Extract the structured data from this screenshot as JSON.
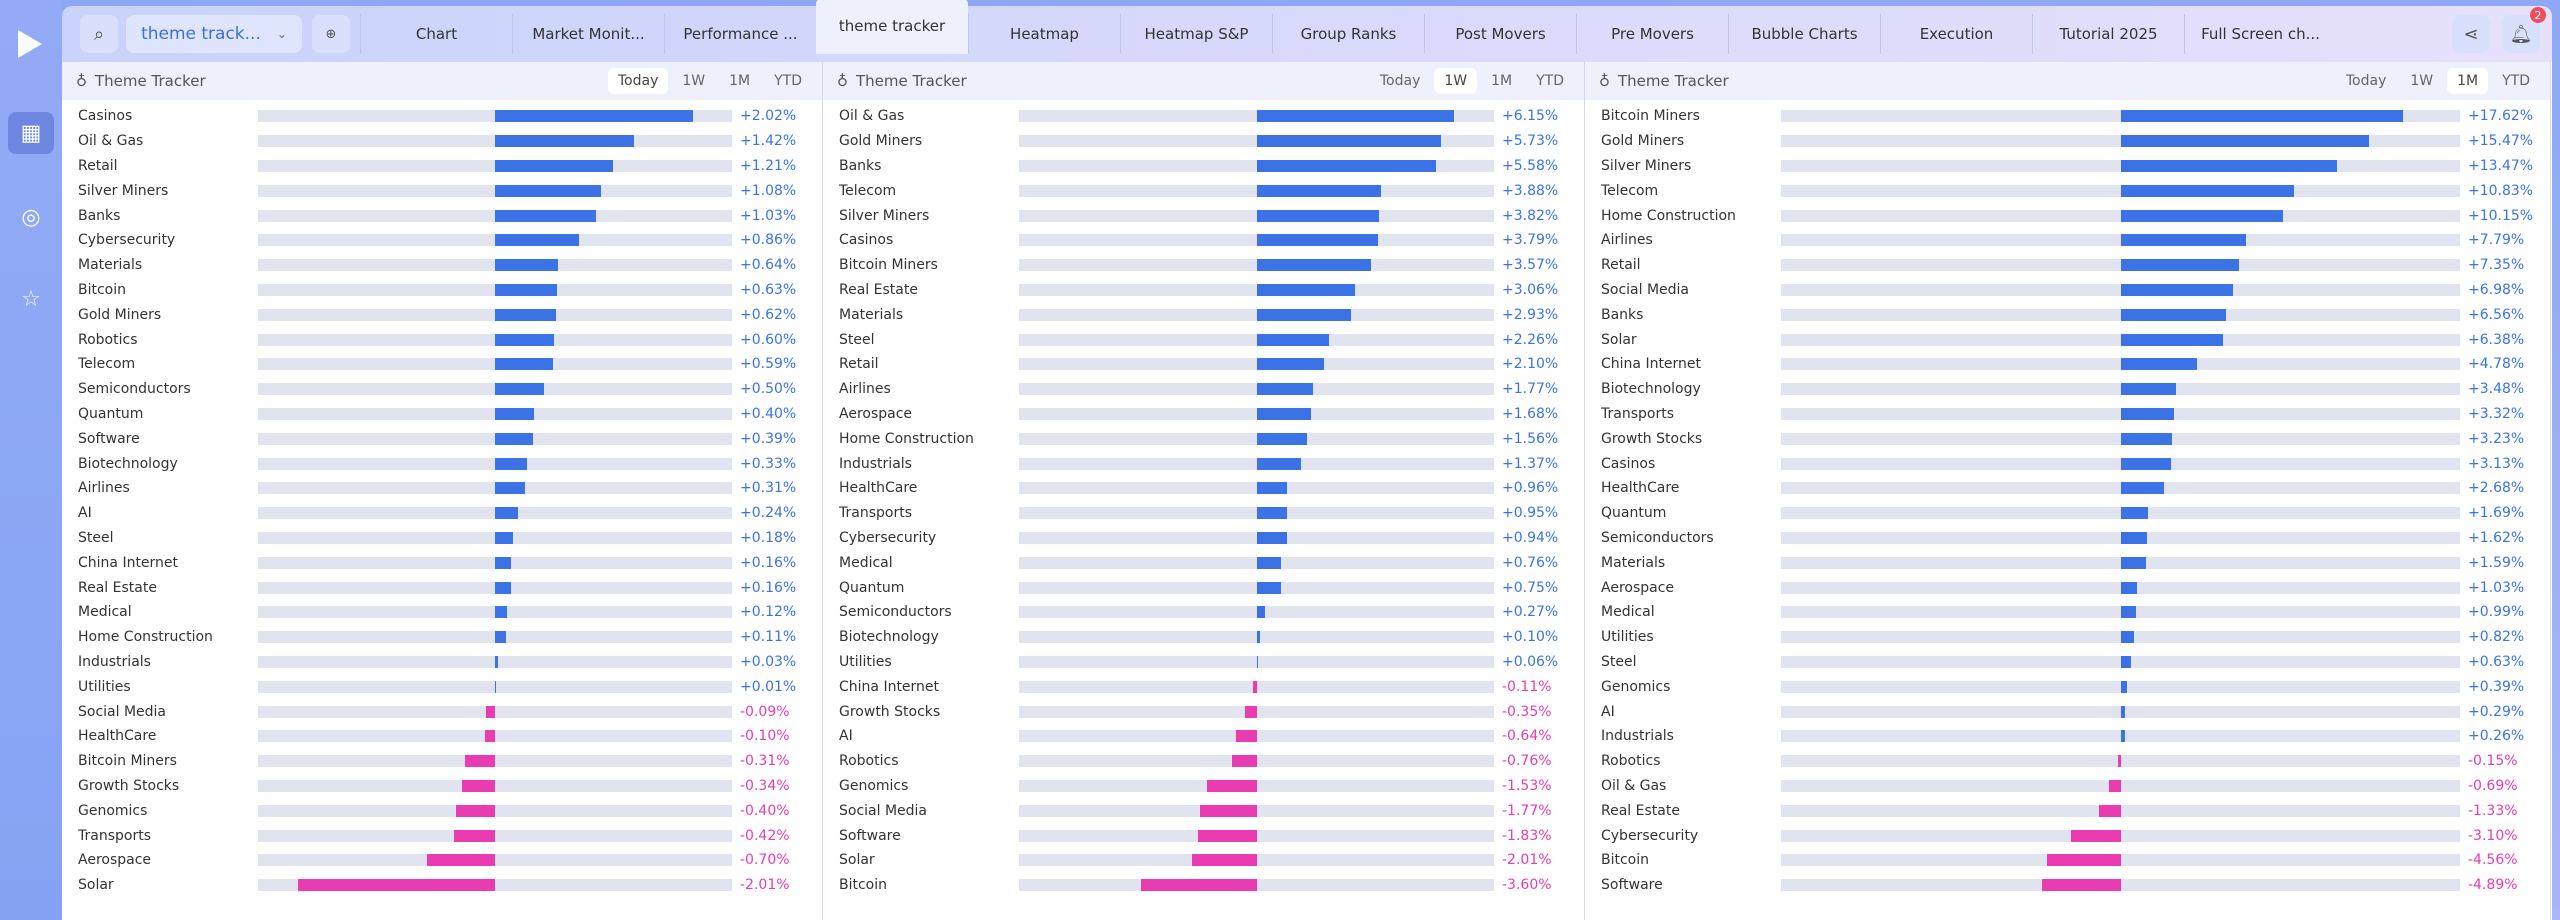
{
  "topbar": {
    "layout_name": "theme track...",
    "tabs": [
      "Chart",
      "Market Monit...",
      "Performance ...",
      "theme tracker",
      "Heatmap",
      "Heatmap S&P",
      "Group Ranks",
      "Post Movers",
      "Pre Movers",
      "Bubble Charts",
      "Execution",
      "Tutorial 2025",
      "Full Screen ch..."
    ],
    "active_tab": 3,
    "notification_count": "2"
  },
  "colors": {
    "positive": "#3b73e6",
    "negative": "#e83cb0"
  },
  "periods": [
    "Today",
    "1W",
    "1M",
    "YTD"
  ],
  "panels": [
    {
      "title": "Theme Tracker",
      "active_period": "Today",
      "rows": [
        [
          "Casinos",
          2.02
        ],
        [
          "Oil & Gas",
          1.42
        ],
        [
          "Retail",
          1.21
        ],
        [
          "Silver Miners",
          1.08
        ],
        [
          "Banks",
          1.03
        ],
        [
          "Cybersecurity",
          0.86
        ],
        [
          "Materials",
          0.64
        ],
        [
          "Bitcoin",
          0.63
        ],
        [
          "Gold Miners",
          0.62
        ],
        [
          "Robotics",
          0.6
        ],
        [
          "Telecom",
          0.59
        ],
        [
          "Semiconductors",
          0.5
        ],
        [
          "Quantum",
          0.4
        ],
        [
          "Software",
          0.39
        ],
        [
          "Biotechnology",
          0.33
        ],
        [
          "Airlines",
          0.31
        ],
        [
          "AI",
          0.24
        ],
        [
          "Steel",
          0.18
        ],
        [
          "China Internet",
          0.16
        ],
        [
          "Real Estate",
          0.16
        ],
        [
          "Medical",
          0.12
        ],
        [
          "Home Construction",
          0.11
        ],
        [
          "Industrials",
          0.03
        ],
        [
          "Utilities",
          0.01
        ],
        [
          "Social Media",
          -0.09
        ],
        [
          "HealthCare",
          -0.1
        ],
        [
          "Bitcoin Miners",
          -0.31
        ],
        [
          "Growth Stocks",
          -0.34
        ],
        [
          "Genomics",
          -0.4
        ],
        [
          "Transports",
          -0.42
        ],
        [
          "Aerospace",
          -0.7
        ],
        [
          "Solar",
          -2.01
        ]
      ]
    },
    {
      "title": "Theme Tracker",
      "active_period": "1W",
      "rows": [
        [
          "Oil & Gas",
          6.15
        ],
        [
          "Gold Miners",
          5.73
        ],
        [
          "Banks",
          5.58
        ],
        [
          "Telecom",
          3.88
        ],
        [
          "Silver Miners",
          3.82
        ],
        [
          "Casinos",
          3.79
        ],
        [
          "Bitcoin Miners",
          3.57
        ],
        [
          "Real Estate",
          3.06
        ],
        [
          "Materials",
          2.93
        ],
        [
          "Steel",
          2.26
        ],
        [
          "Retail",
          2.1
        ],
        [
          "Airlines",
          1.77
        ],
        [
          "Aerospace",
          1.68
        ],
        [
          "Home Construction",
          1.56
        ],
        [
          "Industrials",
          1.37
        ],
        [
          "HealthCare",
          0.96
        ],
        [
          "Transports",
          0.95
        ],
        [
          "Cybersecurity",
          0.94
        ],
        [
          "Medical",
          0.76
        ],
        [
          "Quantum",
          0.75
        ],
        [
          "Semiconductors",
          0.27
        ],
        [
          "Biotechnology",
          0.1
        ],
        [
          "Utilities",
          0.06
        ],
        [
          "China Internet",
          -0.11
        ],
        [
          "Growth Stocks",
          -0.35
        ],
        [
          "AI",
          -0.64
        ],
        [
          "Robotics",
          -0.76
        ],
        [
          "Genomics",
          -1.53
        ],
        [
          "Social Media",
          -1.77
        ],
        [
          "Software",
          -1.83
        ],
        [
          "Solar",
          -2.01
        ],
        [
          "Bitcoin",
          -3.6
        ]
      ]
    },
    {
      "title": "Theme Tracker",
      "active_period": "1M",
      "rows": [
        [
          "Bitcoin Miners",
          17.62
        ],
        [
          "Gold Miners",
          15.47
        ],
        [
          "Silver Miners",
          13.47
        ],
        [
          "Telecom",
          10.83
        ],
        [
          "Home Construction",
          10.15
        ],
        [
          "Airlines",
          7.79
        ],
        [
          "Retail",
          7.35
        ],
        [
          "Social Media",
          6.98
        ],
        [
          "Banks",
          6.56
        ],
        [
          "Solar",
          6.38
        ],
        [
          "China Internet",
          4.78
        ],
        [
          "Biotechnology",
          3.48
        ],
        [
          "Transports",
          3.32
        ],
        [
          "Growth Stocks",
          3.23
        ],
        [
          "Casinos",
          3.13
        ],
        [
          "HealthCare",
          2.68
        ],
        [
          "Quantum",
          1.69
        ],
        [
          "Semiconductors",
          1.62
        ],
        [
          "Materials",
          1.59
        ],
        [
          "Aerospace",
          1.03
        ],
        [
          "Medical",
          0.99
        ],
        [
          "Utilities",
          0.82
        ],
        [
          "Steel",
          0.63
        ],
        [
          "Genomics",
          0.39
        ],
        [
          "AI",
          0.29
        ],
        [
          "Industrials",
          0.26
        ],
        [
          "Robotics",
          -0.15
        ],
        [
          "Oil & Gas",
          -0.69
        ],
        [
          "Real Estate",
          -1.33
        ],
        [
          "Cybersecurity",
          -3.1
        ],
        [
          "Bitcoin",
          -4.56
        ],
        [
          "Software",
          -4.89
        ]
      ]
    }
  ]
}
